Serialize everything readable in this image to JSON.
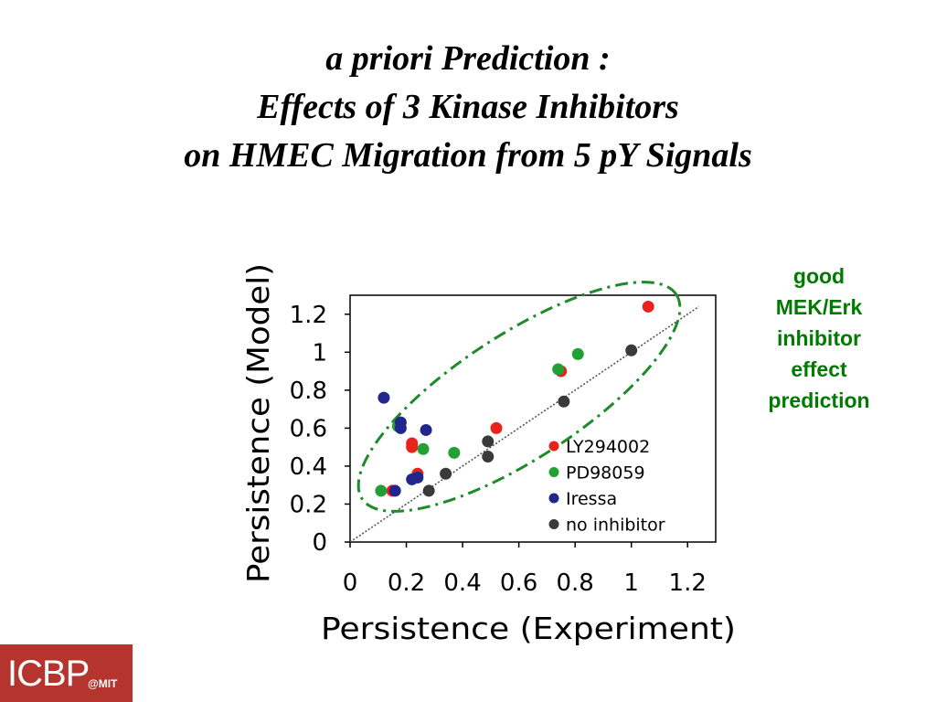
{
  "slide": {
    "title_lines": [
      "a priori Prediction :",
      "Effects of 3 Kinase Inhibitors",
      "on HMEC Migration from 5 pY Signals"
    ],
    "annotation_lines": [
      "good",
      "MEK/Erk",
      "inhibitor",
      "effect",
      "prediction"
    ],
    "annotation_color": "#007a00",
    "logo": {
      "main": "ICBP",
      "sub": "@MIT",
      "background": "#b5352e"
    }
  },
  "chart_data": {
    "type": "scatter",
    "title": "",
    "xlabel": "Persistence (Experiment)",
    "ylabel": "Persistence (Model)",
    "xlim": [
      0,
      1.3
    ],
    "ylim": [
      0,
      1.3
    ],
    "x_ticks": [
      "0",
      "0.2",
      "0.4",
      "0.6",
      "0.8",
      "1",
      "1.2"
    ],
    "y_ticks": [
      "0",
      "0.2",
      "0.4",
      "0.6",
      "0.8",
      "1",
      "1.2"
    ],
    "grid": false,
    "legend_position": "bottom-right",
    "reference_line": "y = x (dotted)",
    "highlight_ellipse": "dash-dot ellipse around PD98059 points",
    "series": [
      {
        "name": "LY294002",
        "color": "#e8231c",
        "points": [
          [
            0.15,
            0.27
          ],
          [
            0.22,
            0.52
          ],
          [
            0.22,
            0.5
          ],
          [
            0.24,
            0.36
          ],
          [
            0.52,
            0.6
          ],
          [
            0.75,
            0.9
          ],
          [
            1.06,
            1.24
          ]
        ]
      },
      {
        "name": "PD98059",
        "color": "#22a034",
        "points": [
          [
            0.11,
            0.27
          ],
          [
            0.17,
            0.61
          ],
          [
            0.26,
            0.49
          ],
          [
            0.37,
            0.47
          ],
          [
            0.74,
            0.91
          ],
          [
            0.81,
            0.99
          ]
        ]
      },
      {
        "name": "Iressa",
        "color": "#22258c",
        "points": [
          [
            0.12,
            0.76
          ],
          [
            0.16,
            0.27
          ],
          [
            0.18,
            0.63
          ],
          [
            0.18,
            0.6
          ],
          [
            0.22,
            0.33
          ],
          [
            0.24,
            0.34
          ],
          [
            0.27,
            0.59
          ]
        ]
      },
      {
        "name": "no inhibitor",
        "color": "#3a3a3a",
        "points": [
          [
            0.28,
            0.27
          ],
          [
            0.34,
            0.36
          ],
          [
            0.49,
            0.45
          ],
          [
            0.49,
            0.53
          ],
          [
            0.76,
            0.74
          ],
          [
            1.0,
            1.01
          ]
        ]
      }
    ]
  }
}
